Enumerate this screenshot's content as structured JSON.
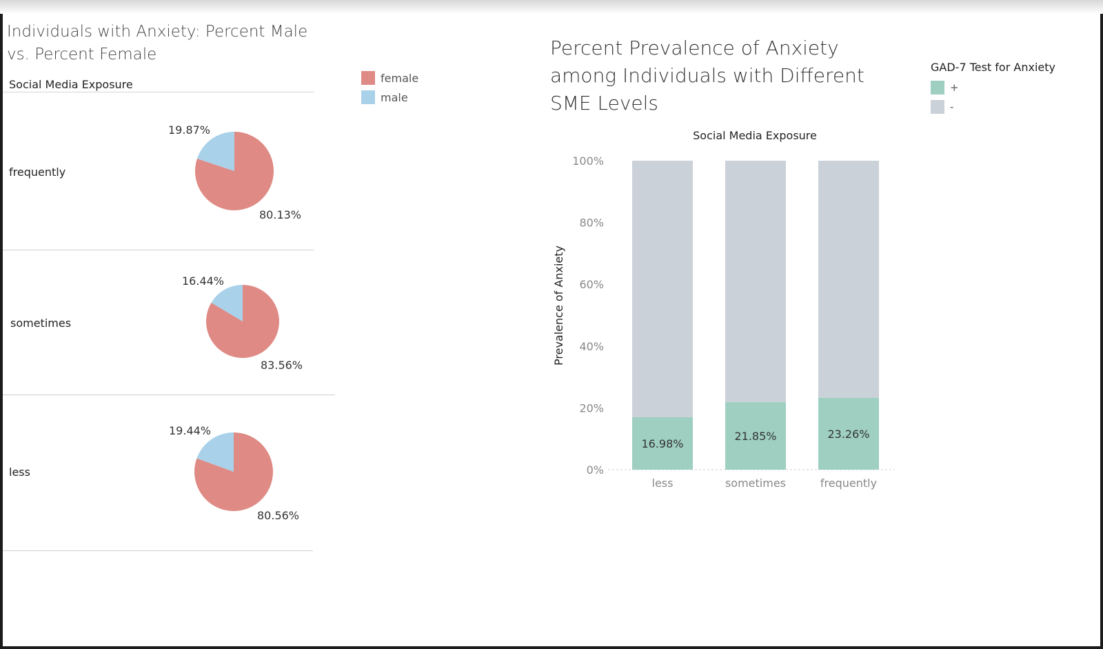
{
  "colors": {
    "female": "#df8a84",
    "male": "#a9d1ea",
    "positive": "#9ecfc0",
    "negative": "#cbd1d8"
  },
  "left": {
    "title": "Individuals with Anxiety: Percent Male vs. Percent Female",
    "header": "Social Media Exposure",
    "legend": [
      {
        "label": "female",
        "color": "#df8a84"
      },
      {
        "label": "male",
        "color": "#a9d1ea"
      }
    ]
  },
  "right": {
    "title": "Percent Prevalence of Anxiety among Individuals with Different SME Levels",
    "legend_title": "GAD-7 Test for Anxiety",
    "legend": [
      {
        "label": "+",
        "color": "#9ecfc0"
      },
      {
        "label": "-",
        "color": "#cbd1d8"
      }
    ]
  },
  "chart_data": [
    {
      "type": "pie",
      "title": "Individuals with Anxiety: Percent Male vs. Percent Female",
      "facet_header": "Social Media Exposure",
      "facets": [
        {
          "category": "frequently",
          "female": 80.13,
          "male": 19.87,
          "female_label": "80.13%",
          "male_label": "19.87%"
        },
        {
          "category": "sometimes",
          "female": 83.56,
          "male": 16.44,
          "female_label": "83.56%",
          "male_label": "16.44%"
        },
        {
          "category": "less",
          "female": 80.56,
          "male": 19.44,
          "female_label": "80.56%",
          "male_label": "19.44%"
        }
      ],
      "legend": [
        "female",
        "male"
      ],
      "legend_position": "top-right"
    },
    {
      "type": "bar",
      "stacked": true,
      "title": "Percent Prevalence of Anxiety among Individuals with Different SME Levels",
      "xlabel": "Social Media Exposure",
      "ylabel": "Prevalence of Anxiety",
      "categories": [
        "less",
        "sometimes",
        "frequently"
      ],
      "series": [
        {
          "name": "+",
          "values": [
            16.98,
            21.85,
            23.26
          ],
          "labels": [
            "16.98%",
            "21.85%",
            "23.26%"
          ]
        },
        {
          "name": "-",
          "values": [
            83.02,
            78.15,
            76.74
          ]
        }
      ],
      "ylim": [
        0,
        100
      ],
      "yticks": [
        "0%",
        "20%",
        "40%",
        "60%",
        "80%",
        "100%"
      ],
      "legend_title": "GAD-7 Test for Anxiety",
      "legend_position": "top-right",
      "grid": false
    }
  ]
}
